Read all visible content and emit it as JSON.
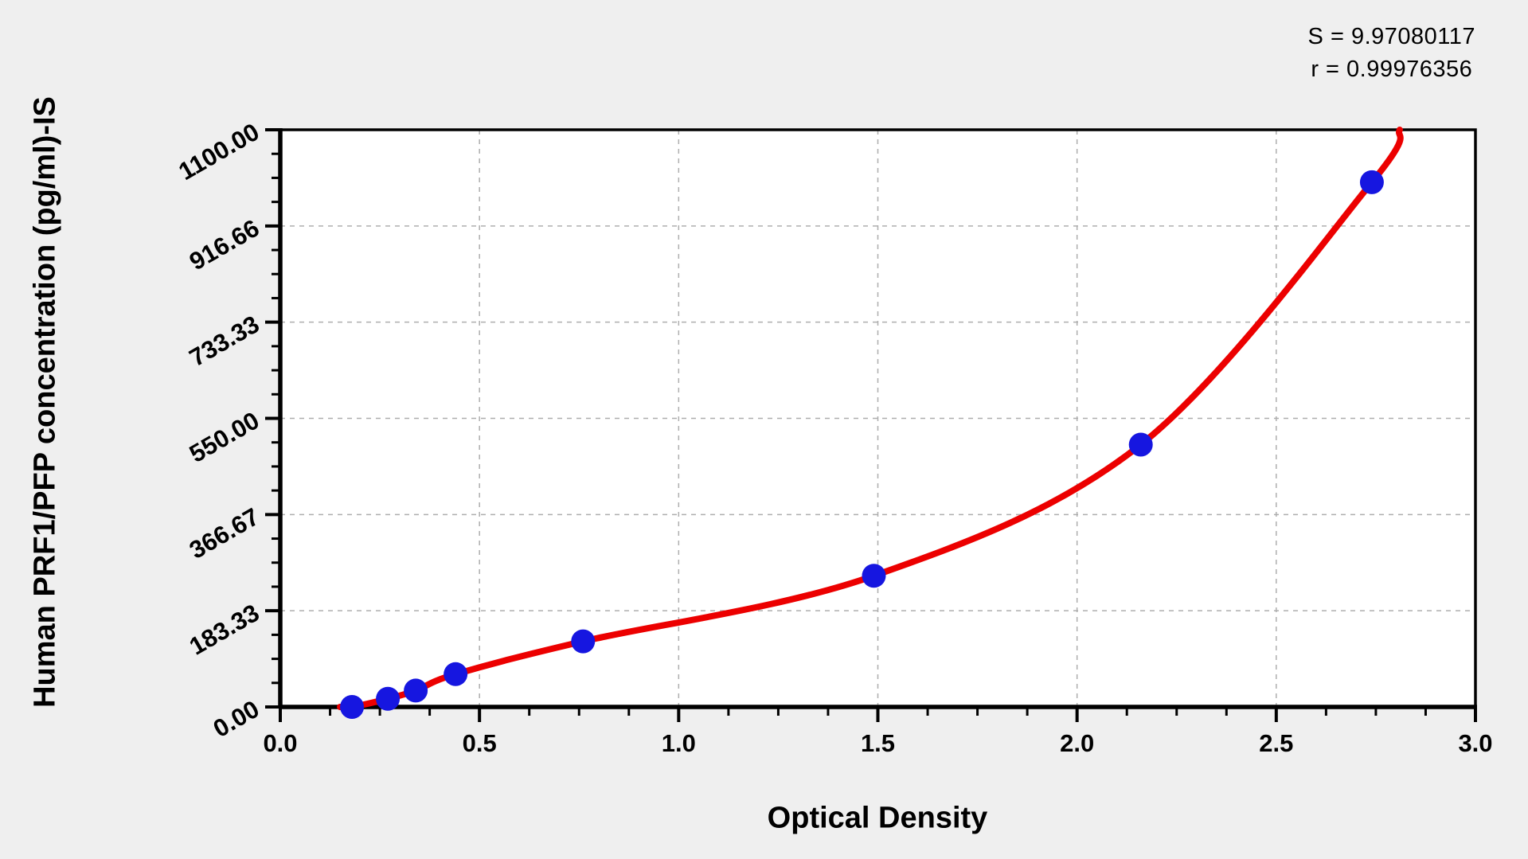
{
  "page": {
    "background": "#efefef",
    "plot_background": "#ffffff"
  },
  "annotation": {
    "s_line": "S = 9.97080117",
    "r_line": "r = 0.99976356"
  },
  "chart_data": {
    "type": "scatter",
    "title": "",
    "xlabel": "Optical Density",
    "ylabel": "Human PRF1/PFP concentration (pg/ml)-IS",
    "xlim": [
      0.0,
      3.0
    ],
    "ylim": [
      0,
      1100
    ],
    "x_tick_labels": [
      "0.0",
      "0.5",
      "1.0",
      "1.5",
      "2.0",
      "2.5",
      "3.0"
    ],
    "x_tick_values": [
      0,
      0.5,
      1.0,
      1.5,
      2.0,
      2.5,
      3.0
    ],
    "x_minor_step": 0.125,
    "y_tick_labels": [
      "0.00",
      "183.33",
      "366.67",
      "550.00",
      "733.33",
      "916.66",
      "1100.00"
    ],
    "y_tick_values": [
      0,
      183.33,
      366.67,
      550.0,
      733.33,
      916.66,
      1100.0
    ],
    "y_minor_step": 45.8333,
    "grid": "dashed gray gridlines at every major tick, both axes",
    "legend": "none",
    "series": [
      {
        "name": "standard-points",
        "type": "scatter",
        "color": "#1616e0",
        "x": [
          0.18,
          0.27,
          0.34,
          0.44,
          0.76,
          1.49,
          2.16,
          2.74
        ],
        "y": [
          0,
          15.6,
          31.2,
          62.5,
          125,
          250,
          500,
          1000
        ]
      },
      {
        "name": "fitted-curve",
        "type": "line",
        "color": "#ec0000",
        "x": [
          0.15,
          0.18,
          0.27,
          0.34,
          0.44,
          0.76,
          1.49,
          2.16,
          2.74,
          2.81
        ],
        "y": [
          0,
          0,
          15.6,
          31.2,
          62.5,
          125,
          250,
          500,
          1000,
          1100
        ]
      }
    ],
    "stats": {
      "S": 9.97080117,
      "r": 0.99976356
    }
  },
  "colors": {
    "grid": "#aeaeae",
    "axis": "#000000",
    "point": "#1616e0",
    "curve": "#ec0000"
  }
}
